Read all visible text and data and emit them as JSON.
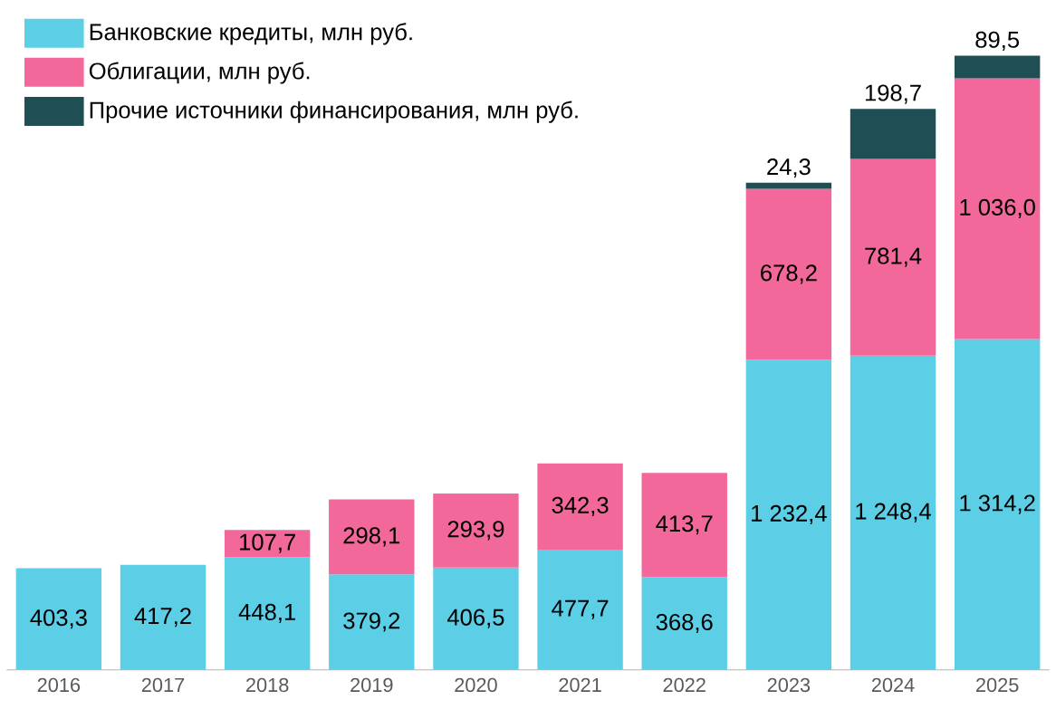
{
  "chart_data": {
    "type": "bar",
    "stacked": true,
    "legend": "top left",
    "categories": [
      "2016",
      "2017",
      "2018",
      "2019",
      "2020",
      "2021",
      "2022",
      "2023",
      "2024",
      "2025"
    ],
    "series": [
      {
        "name": "Банковские кредиты, млн руб.",
        "color": "#5ccfe6",
        "values": [
          403.3,
          417.2,
          448.1,
          379.2,
          406.5,
          477.7,
          368.6,
          1232.4,
          1248.4,
          1314.2
        ],
        "value_labels": [
          "403,3",
          "417,2",
          "448,1",
          "379,2",
          "406,5",
          "477,7",
          "368,6",
          "1 232,4",
          "1 248,4",
          "1 314,2"
        ]
      },
      {
        "name": "Облигации, млн руб.",
        "color": "#f2689a",
        "values": [
          null,
          null,
          107.7,
          298.1,
          293.9,
          342.3,
          413.7,
          678.2,
          781.4,
          1036.0
        ],
        "value_labels": [
          null,
          null,
          "107,7",
          "298,1",
          "293,9",
          "342,3",
          "413,7",
          "678,2",
          "781,4",
          "1 036,0"
        ]
      },
      {
        "name": "Прочие источники финансирования, млн руб.",
        "color": "#1f4f55",
        "values": [
          null,
          null,
          null,
          null,
          null,
          null,
          null,
          24.3,
          198.7,
          89.5
        ],
        "value_labels": [
          null,
          null,
          null,
          null,
          null,
          null,
          null,
          "24,3",
          "198,7",
          "89,5"
        ]
      }
    ]
  }
}
